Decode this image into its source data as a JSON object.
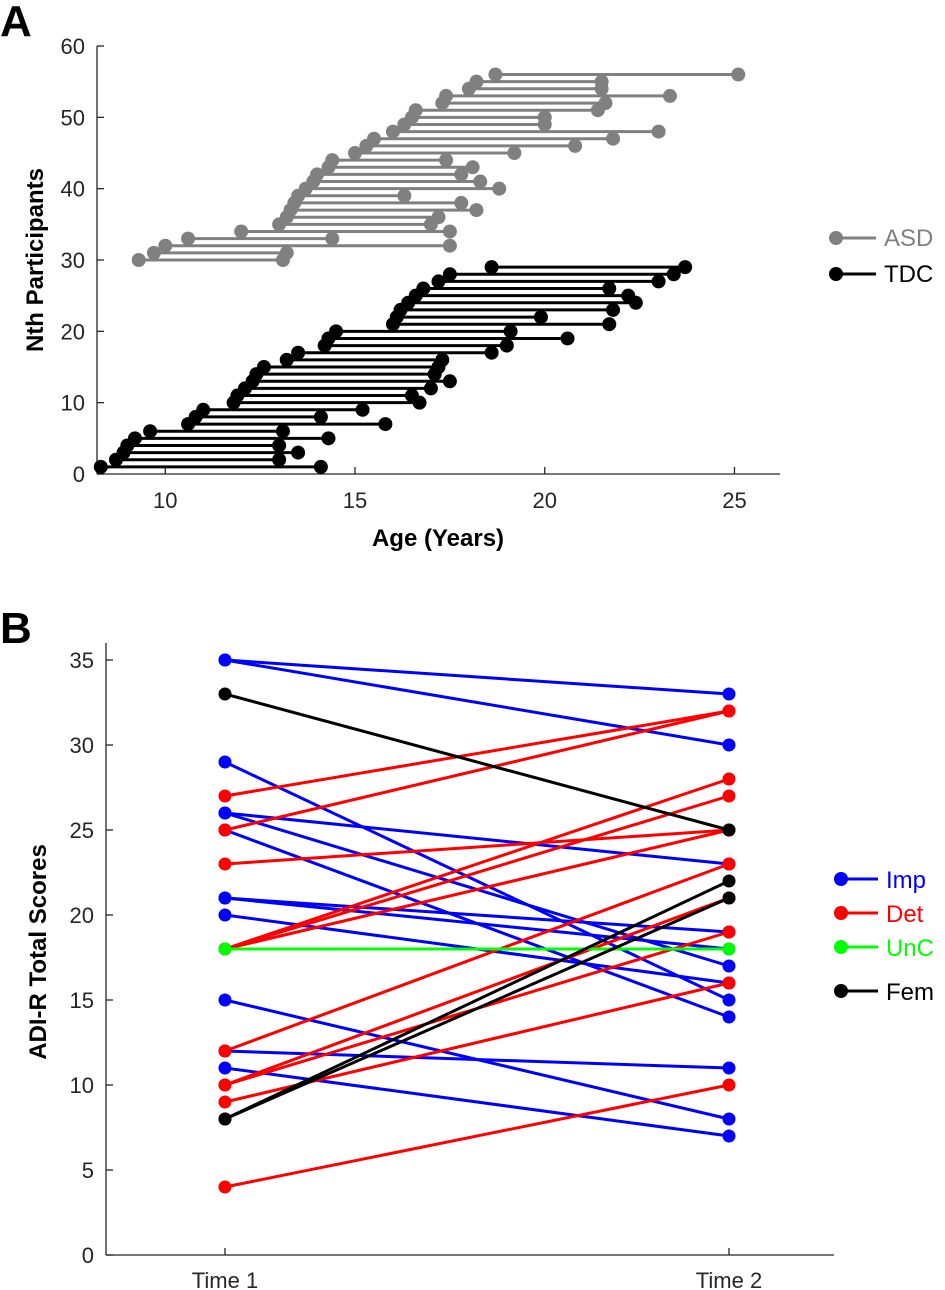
{
  "chart_data": [
    {
      "panel": "A",
      "type": "scatter",
      "subtype": "dumbbell",
      "title": "",
      "xlabel": "Age (Years)",
      "ylabel": "Nth Participants",
      "xlim": [
        8.2,
        26.2
      ],
      "ylim": [
        0,
        60
      ],
      "xticks": [
        10,
        15,
        20,
        25
      ],
      "yticks": [
        0,
        10,
        20,
        30,
        40,
        50,
        60
      ],
      "legend_position": "right",
      "series": [
        {
          "name": "ASD",
          "color": "#808080",
          "participants": [
            {
              "n": 30,
              "start": 9.3,
              "end": 13.1
            },
            {
              "n": 31,
              "start": 9.7,
              "end": 13.2
            },
            {
              "n": 32,
              "start": 10.0,
              "end": 17.5
            },
            {
              "n": 33,
              "start": 10.6,
              "end": 14.4
            },
            {
              "n": 34,
              "start": 12.0,
              "end": 17.5
            },
            {
              "n": 35,
              "start": 13.0,
              "end": 17.0
            },
            {
              "n": 36,
              "start": 13.2,
              "end": 17.2
            },
            {
              "n": 37,
              "start": 13.3,
              "end": 18.2
            },
            {
              "n": 38,
              "start": 13.4,
              "end": 17.8
            },
            {
              "n": 39,
              "start": 13.5,
              "end": 16.3
            },
            {
              "n": 40,
              "start": 13.7,
              "end": 18.8
            },
            {
              "n": 41,
              "start": 13.9,
              "end": 18.3
            },
            {
              "n": 42,
              "start": 14.0,
              "end": 17.8
            },
            {
              "n": 43,
              "start": 14.3,
              "end": 18.1
            },
            {
              "n": 44,
              "start": 14.4,
              "end": 17.4
            },
            {
              "n": 45,
              "start": 15.0,
              "end": 19.2
            },
            {
              "n": 46,
              "start": 15.3,
              "end": 20.8
            },
            {
              "n": 47,
              "start": 15.5,
              "end": 21.8
            },
            {
              "n": 48,
              "start": 16.0,
              "end": 23.0
            },
            {
              "n": 49,
              "start": 16.3,
              "end": 20.0
            },
            {
              "n": 50,
              "start": 16.5,
              "end": 20.0
            },
            {
              "n": 51,
              "start": 16.6,
              "end": 21.4
            },
            {
              "n": 52,
              "start": 17.3,
              "end": 21.6
            },
            {
              "n": 53,
              "start": 17.4,
              "end": 23.3
            },
            {
              "n": 54,
              "start": 18.0,
              "end": 21.5
            },
            {
              "n": 55,
              "start": 18.2,
              "end": 21.5
            },
            {
              "n": 56,
              "start": 18.7,
              "end": 25.1
            }
          ]
        },
        {
          "name": "TDC",
          "color": "#000000",
          "participants": [
            {
              "n": 1,
              "start": 8.3,
              "end": 14.1
            },
            {
              "n": 2,
              "start": 8.7,
              "end": 13.0
            },
            {
              "n": 3,
              "start": 8.9,
              "end": 13.5
            },
            {
              "n": 4,
              "start": 9.0,
              "end": 13.0
            },
            {
              "n": 5,
              "start": 9.2,
              "end": 14.3
            },
            {
              "n": 6,
              "start": 9.6,
              "end": 13.1
            },
            {
              "n": 7,
              "start": 10.6,
              "end": 15.8
            },
            {
              "n": 8,
              "start": 10.8,
              "end": 14.1
            },
            {
              "n": 9,
              "start": 11.0,
              "end": 15.2
            },
            {
              "n": 10,
              "start": 11.8,
              "end": 16.7
            },
            {
              "n": 11,
              "start": 11.9,
              "end": 16.5
            },
            {
              "n": 12,
              "start": 12.1,
              "end": 17.0
            },
            {
              "n": 13,
              "start": 12.3,
              "end": 17.5
            },
            {
              "n": 14,
              "start": 12.4,
              "end": 17.1
            },
            {
              "n": 15,
              "start": 12.6,
              "end": 17.2
            },
            {
              "n": 16,
              "start": 13.2,
              "end": 17.3
            },
            {
              "n": 17,
              "start": 13.5,
              "end": 18.6
            },
            {
              "n": 18,
              "start": 14.2,
              "end": 19.0
            },
            {
              "n": 19,
              "start": 14.3,
              "end": 20.6
            },
            {
              "n": 20,
              "start": 14.5,
              "end": 19.1
            },
            {
              "n": 21,
              "start": 16.0,
              "end": 21.7
            },
            {
              "n": 22,
              "start": 16.1,
              "end": 19.9
            },
            {
              "n": 23,
              "start": 16.2,
              "end": 21.8
            },
            {
              "n": 24,
              "start": 16.4,
              "end": 22.4
            },
            {
              "n": 25,
              "start": 16.6,
              "end": 22.2
            },
            {
              "n": 26,
              "start": 16.8,
              "end": 21.7
            },
            {
              "n": 27,
              "start": 17.2,
              "end": 23.0
            },
            {
              "n": 28,
              "start": 17.5,
              "end": 23.4
            },
            {
              "n": 29,
              "start": 18.6,
              "end": 23.7
            }
          ]
        }
      ]
    },
    {
      "panel": "B",
      "type": "line",
      "subtype": "slopegraph",
      "title": "",
      "xlabel": "",
      "ylabel": "ADI-R Total Scores",
      "categories": [
        "Time 1",
        "Time 2"
      ],
      "ylim": [
        0,
        36
      ],
      "yticks": [
        0,
        5,
        10,
        15,
        20,
        25,
        30,
        35
      ],
      "legend_position": "right",
      "groups": [
        {
          "name": "Imp",
          "color": "#0000FF"
        },
        {
          "name": "Det",
          "color": "#FF0000"
        },
        {
          "name": "UnC",
          "color": "#00FF00"
        },
        {
          "name": "Fem",
          "color": "#000000"
        }
      ],
      "pairs": [
        {
          "group": "Imp",
          "time1": 35,
          "time2": 33
        },
        {
          "group": "Imp",
          "time1": 35,
          "time2": 30
        },
        {
          "group": "Imp",
          "time1": 29,
          "time2": 15
        },
        {
          "group": "Imp",
          "time1": 26,
          "time2": 23
        },
        {
          "group": "Imp",
          "time1": 26,
          "time2": 17
        },
        {
          "group": "Imp",
          "time1": 25,
          "time2": 14
        },
        {
          "group": "Imp",
          "time1": 21,
          "time2": 19
        },
        {
          "group": "Imp",
          "time1": 21,
          "time2": 18
        },
        {
          "group": "Imp",
          "time1": 20,
          "time2": 16
        },
        {
          "group": "Imp",
          "time1": 15,
          "time2": 8
        },
        {
          "group": "Imp",
          "time1": 12,
          "time2": 11
        },
        {
          "group": "Imp",
          "time1": 11,
          "time2": 7
        },
        {
          "group": "Det",
          "time1": 27,
          "time2": 32
        },
        {
          "group": "Det",
          "time1": 25,
          "time2": 32
        },
        {
          "group": "Det",
          "time1": 23,
          "time2": 25
        },
        {
          "group": "Det",
          "time1": 18,
          "time2": 28
        },
        {
          "group": "Det",
          "time1": 18,
          "time2": 27
        },
        {
          "group": "Det",
          "time1": 18,
          "time2": 25
        },
        {
          "group": "Det",
          "time1": 12,
          "time2": 23
        },
        {
          "group": "Det",
          "time1": 10,
          "time2": 21
        },
        {
          "group": "Det",
          "time1": 10,
          "time2": 19
        },
        {
          "group": "Det",
          "time1": 9,
          "time2": 16
        },
        {
          "group": "Det",
          "time1": 4,
          "time2": 10
        },
        {
          "group": "UnC",
          "time1": 18,
          "time2": 18
        },
        {
          "group": "Fem",
          "time1": 33,
          "time2": 25
        },
        {
          "group": "Fem",
          "time1": 8,
          "time2": 22
        },
        {
          "group": "Fem",
          "time1": 8,
          "time2": 21
        }
      ]
    }
  ]
}
